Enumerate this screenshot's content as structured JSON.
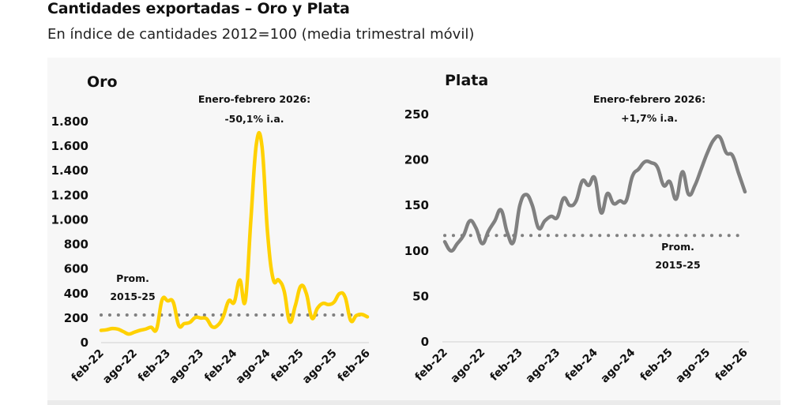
{
  "title": "Cantidades exportadas – Oro y Plata",
  "subtitle": "En índice de cantidades 2012=100 (media trimestral móvil)",
  "colors": {
    "oro": "#FFD100",
    "plata": "#808080",
    "prom": "#808080",
    "axis": "#dddddd"
  },
  "chart_data": [
    {
      "type": "line",
      "title": "Oro",
      "xlabel": "",
      "ylabel": "",
      "ylim": [
        0,
        1800
      ],
      "yticks": [
        0,
        200,
        400,
        600,
        800,
        1000,
        1200,
        1400,
        1600,
        1800
      ],
      "ytick_labels": [
        "0",
        "200",
        "400",
        "600",
        "800",
        "1.000",
        "1.200",
        "1.400",
        "1.600",
        "1.800"
      ],
      "xtick_labels": [
        "feb-22",
        "ago-22",
        "feb-23",
        "ago-23",
        "feb-24",
        "ago-24",
        "feb-25",
        "ago-25",
        "feb-26"
      ],
      "x_start": "feb-22",
      "x_end": "feb-26",
      "grid": false,
      "annotation": {
        "line1": "Enero-febrero 2026:",
        "line2": "-50,1% i.a."
      },
      "reference_line": {
        "label1": "Prom.",
        "label2": "2015-25",
        "value": 225
      },
      "series": [
        {
          "name": "Oro",
          "color": "#FFD100",
          "values": [
            100,
            105,
            115,
            110,
            90,
            70,
            85,
            100,
            110,
            125,
            110,
            350,
            340,
            330,
            140,
            155,
            165,
            205,
            200,
            195,
            130,
            140,
            210,
            340,
            330,
            510,
            340,
            1000,
            1620,
            1600,
            900,
            520,
            510,
            420,
            170,
            300,
            460,
            400,
            200,
            280,
            320,
            310,
            330,
            400,
            370,
            180,
            220,
            230,
            210
          ]
        }
      ]
    },
    {
      "type": "line",
      "title": "Plata",
      "xlabel": "",
      "ylabel": "",
      "ylim": [
        0,
        250
      ],
      "yticks": [
        0,
        50,
        100,
        150,
        200,
        250
      ],
      "ytick_labels": [
        "0",
        "50",
        "100",
        "150",
        "200",
        "250"
      ],
      "xtick_labels": [
        "feb-22",
        "ago-22",
        "feb-23",
        "ago-23",
        "feb-24",
        "ago-24",
        "feb-25",
        "ago-25",
        "feb-26"
      ],
      "x_start": "feb-22",
      "x_end": "feb-26",
      "grid": false,
      "annotation": {
        "line1": "Enero-febrero 2026:",
        "line2": "+1,7% i.a."
      },
      "reference_line": {
        "label1": "Prom.",
        "label2": "2015-25",
        "value": 117
      },
      "series": [
        {
          "name": "Plata",
          "color": "#808080",
          "values": [
            110,
            100,
            108,
            117,
            133,
            125,
            108,
            122,
            133,
            145,
            120,
            110,
            150,
            162,
            150,
            125,
            133,
            138,
            137,
            158,
            150,
            155,
            177,
            172,
            180,
            142,
            163,
            152,
            155,
            155,
            182,
            190,
            198,
            197,
            192,
            172,
            176,
            157,
            187,
            162,
            172,
            190,
            208,
            222,
            225,
            208,
            205,
            185,
            165
          ]
        }
      ]
    }
  ]
}
